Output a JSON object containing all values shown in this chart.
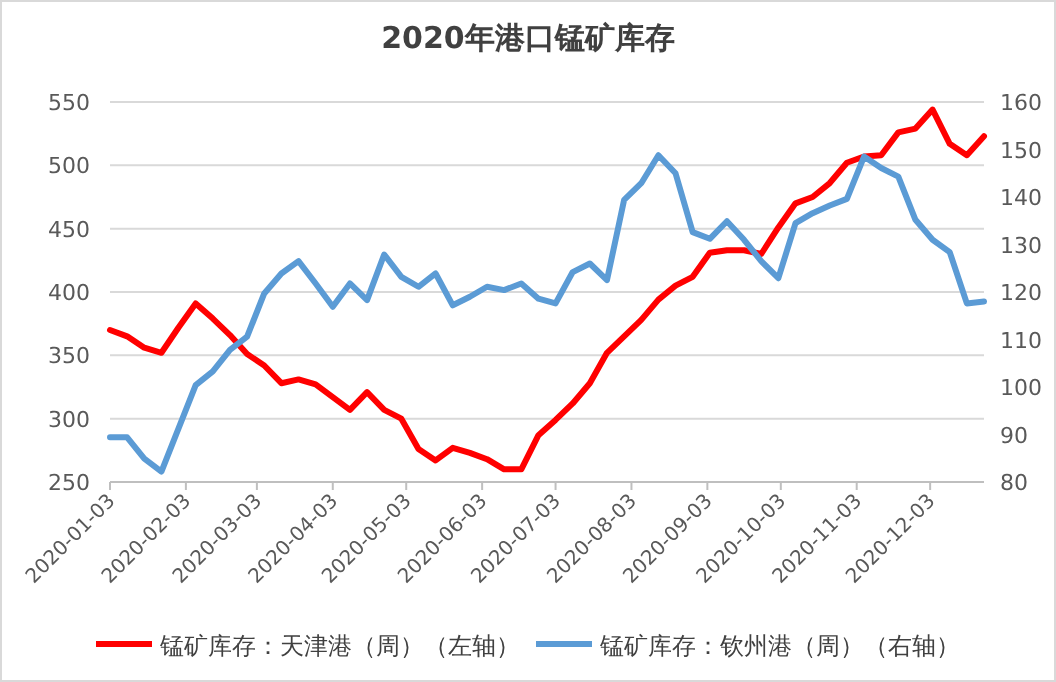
{
  "chart_data": {
    "type": "line",
    "title": "2020年港口锰矿库存",
    "x": [
      "2020-01-03",
      "2020-01-10",
      "2020-01-17",
      "2020-01-24",
      "2020-01-31",
      "2020-02-07",
      "2020-02-14",
      "2020-02-21",
      "2020-02-28",
      "2020-03-06",
      "2020-03-13",
      "2020-03-20",
      "2020-03-27",
      "2020-04-03",
      "2020-04-10",
      "2020-04-17",
      "2020-04-24",
      "2020-05-01",
      "2020-05-08",
      "2020-05-15",
      "2020-05-22",
      "2020-05-29",
      "2020-06-05",
      "2020-06-12",
      "2020-06-19",
      "2020-06-26",
      "2020-07-03",
      "2020-07-10",
      "2020-07-17",
      "2020-07-24",
      "2020-07-31",
      "2020-08-07",
      "2020-08-14",
      "2020-08-21",
      "2020-08-28",
      "2020-09-04",
      "2020-09-11",
      "2020-09-18",
      "2020-09-25",
      "2020-10-02",
      "2020-10-09",
      "2020-10-16",
      "2020-10-23",
      "2020-10-30",
      "2020-11-06",
      "2020-11-13",
      "2020-11-20",
      "2020-11-27",
      "2020-12-04",
      "2020-12-11",
      "2020-12-18",
      "2020-12-25"
    ],
    "series": [
      {
        "name": "锰矿库存：天津港（周）（左轴）",
        "color": "#ff0000",
        "values": [
          370,
          365,
          356,
          352,
          372,
          391,
          379,
          366,
          351,
          342,
          328,
          331,
          327,
          317,
          307,
          321,
          307,
          300,
          276,
          267,
          277,
          273,
          268,
          260,
          260,
          287,
          299,
          312,
          328,
          352,
          365,
          378,
          394,
          405,
          412,
          431,
          433,
          433,
          430,
          451,
          470,
          475,
          486,
          502,
          507,
          508,
          526,
          529,
          544,
          517,
          508,
          523
        ]
      },
      {
        "name": "锰矿库存：钦州港（周）（右轴）",
        "color": "#5b9bd5",
        "axis": "y2",
        "values": [
          89.4,
          89.4,
          84.9,
          82.2,
          91.3,
          100.4,
          103.3,
          107.8,
          110.6,
          119.7,
          123.9,
          126.5,
          121.8,
          116.9,
          121.8,
          118.3,
          127.9,
          123.2,
          121.1,
          123.9,
          117.2,
          119,
          121.1,
          120.4,
          121.8,
          118.6,
          117.6,
          124.2,
          126,
          122.5,
          139.4,
          142.9,
          148.8,
          145,
          132.6,
          131.2,
          134.9,
          131,
          126.5,
          122.9,
          134.5,
          136.6,
          138.2,
          139.6,
          148.5,
          146.1,
          144.3,
          135.2,
          131,
          128.4,
          117.6,
          118
        ]
      }
    ],
    "xlim": [
      "2020-01-03",
      "2020-12-25"
    ],
    "xticks": [
      "2020-01-03",
      "2020-02-03",
      "2020-03-03",
      "2020-04-03",
      "2020-05-03",
      "2020-06-03",
      "2020-07-03",
      "2020-08-03",
      "2020-09-03",
      "2020-10-03",
      "2020-11-03",
      "2020-12-03"
    ],
    "ylim": [
      250,
      550
    ],
    "yticks": [
      250,
      300,
      350,
      400,
      450,
      500,
      550
    ],
    "y2lim": [
      80,
      160
    ],
    "y2ticks": [
      80,
      90,
      100,
      110,
      120,
      130,
      140,
      150,
      160
    ],
    "grid": "y",
    "legend": "bottom",
    "marker": "none",
    "line_style": "solid"
  }
}
